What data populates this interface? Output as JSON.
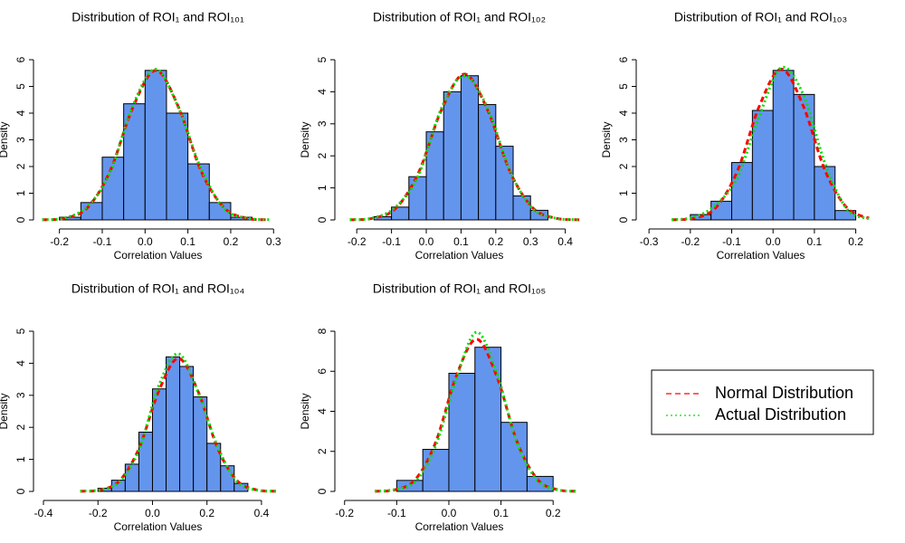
{
  "chart_data": [
    {
      "type": "histogram",
      "title": "Distribution of ROI₁ and ROI₁₀₁",
      "x_label": "Correlation Values",
      "y_label": "Density",
      "color": "#6495ed",
      "bins": [
        -0.2,
        -0.15,
        -0.1,
        -0.05,
        0,
        0.05,
        0.1,
        0.15,
        0.2,
        0.25
      ],
      "values": [
        0.1,
        0.65,
        2.35,
        4.35,
        5.6,
        4.0,
        2.1,
        0.65,
        0.1
      ],
      "xlim": [
        -0.25,
        0.31
      ],
      "xticks": [
        -0.2,
        -0.1,
        {
          "value": 0,
          "label": "0.0"
        },
        0.1,
        0.2,
        0.3
      ],
      "ylim": [
        0,
        6
      ],
      "yticks": [
        0,
        1,
        2,
        3,
        4,
        5,
        6
      ],
      "series": [
        {
          "color": "#ff0000",
          "x": [
            -0.24,
            -0.188,
            -0.135,
            -0.082,
            -0.028,
            0.025,
            0.078,
            0.131,
            0.185,
            0.238,
            0.29
          ],
          "values": [
            0.005,
            0.06,
            0.45,
            1.82,
            4.23,
            5.6,
            4.23,
            1.82,
            0.45,
            0.06,
            0.005
          ]
        },
        {
          "color": "#00e000",
          "x": [
            -0.24,
            -0.188,
            -0.135,
            -0.082,
            -0.028,
            0.025,
            0.078,
            0.131,
            0.185,
            0.238,
            0.29
          ],
          "values": [
            0.01,
            0.07,
            0.5,
            1.75,
            4.3,
            5.65,
            4.2,
            1.9,
            0.42,
            0.07,
            0.01
          ]
        }
      ]
    },
    {
      "type": "histogram",
      "title": "Distribution of ROI₁ and ROI₁₀₂",
      "x_label": "Correlation Values",
      "y_label": "Density",
      "color": "#6495ed",
      "bins": [
        -0.15,
        -0.1,
        -0.05,
        0,
        0.05,
        0.1,
        0.15,
        0.2,
        0.25,
        0.3,
        0.35
      ],
      "values": [
        0.1,
        0.4,
        1.35,
        2.75,
        4.0,
        4.5,
        3.6,
        2.3,
        0.75,
        0.3
      ],
      "xlim": [
        -0.25,
        0.44
      ],
      "xticks": [
        -0.2,
        -0.1,
        {
          "value": 0,
          "label": "0.0"
        },
        0.1,
        0.2,
        0.3,
        0.4
      ],
      "ylim": [
        0,
        5
      ],
      "yticks": [
        0,
        1,
        2,
        3,
        4,
        5
      ],
      "series": [
        {
          "color": "#ff0000",
          "x": [
            -0.22,
            -0.154,
            -0.088,
            -0.022,
            0.044,
            0.11,
            0.176,
            0.242,
            0.308,
            0.374,
            0.44
          ],
          "values": [
            0.004,
            0.05,
            0.36,
            1.48,
            3.44,
            4.55,
            3.44,
            1.48,
            0.36,
            0.05,
            0.004
          ]
        },
        {
          "color": "#00e000",
          "x": [
            -0.22,
            -0.154,
            -0.088,
            -0.022,
            0.044,
            0.11,
            0.176,
            0.242,
            0.308,
            0.374,
            0.44
          ],
          "values": [
            0.01,
            0.06,
            0.4,
            1.4,
            3.5,
            4.5,
            3.5,
            1.5,
            0.33,
            0.05,
            0.01
          ]
        }
      ]
    },
    {
      "type": "histogram",
      "title": "Distribution of ROI₁ and ROI₁₀₃",
      "x_label": "Correlation Values",
      "y_label": "Density",
      "color": "#6495ed",
      "bins": [
        -0.2,
        -0.15,
        -0.1,
        -0.05,
        0,
        0.05,
        0.1,
        0.15,
        0.2
      ],
      "values": [
        0.2,
        0.7,
        2.15,
        4.1,
        5.6,
        4.7,
        2.0,
        0.35
      ],
      "xlim": [
        -0.32,
        0.26
      ],
      "xticks": [
        -0.3,
        -0.2,
        -0.1,
        {
          "value": 0,
          "label": "0.0"
        },
        0.1,
        0.2
      ],
      "ylim": [
        0,
        6
      ],
      "yticks": [
        0,
        1,
        2,
        3,
        4,
        5,
        6
      ],
      "series": [
        {
          "color": "#ff0000",
          "x": [
            -0.245,
            -0.192,
            -0.139,
            -0.086,
            -0.033,
            0.02,
            0.073,
            0.126,
            0.179,
            0.232
          ],
          "values": [
            0.005,
            0.063,
            0.45,
            1.84,
            4.27,
            5.65,
            4.27,
            1.84,
            0.45,
            0.063
          ]
        },
        {
          "color": "#00e000",
          "x": [
            -0.245,
            -0.192,
            -0.139,
            -0.086,
            -0.033,
            0.02,
            0.073,
            0.126,
            0.179,
            0.232
          ],
          "values": [
            0.01,
            0.1,
            0.55,
            1.6,
            3.9,
            5.7,
            4.7,
            2.1,
            0.4,
            0.04
          ]
        }
      ]
    },
    {
      "type": "histogram",
      "title": "Distribution of ROI₁ and ROI₁₀₄",
      "x_label": "Correlation Values",
      "y_label": "Density",
      "color": "#6495ed",
      "bins": [
        -0.2,
        -0.15,
        -0.1,
        -0.05,
        0,
        0.05,
        0.1,
        0.15,
        0.2,
        0.25,
        0.3,
        0.35
      ],
      "values": [
        0.1,
        0.35,
        0.85,
        1.85,
        3.2,
        4.2,
        3.9,
        2.95,
        1.5,
        0.8,
        0.25
      ],
      "xlim": [
        -0.42,
        0.46
      ],
      "xticks": [
        -0.4,
        -0.2,
        {
          "value": 0,
          "label": "0.0"
        },
        0.2,
        0.4
      ],
      "ylim": [
        0,
        5
      ],
      "yticks": [
        0,
        1,
        2,
        3,
        4,
        5
      ],
      "series": [
        {
          "color": "#ff0000",
          "x": [
            -0.265,
            -0.193,
            -0.121,
            -0.049,
            0.023,
            0.095,
            0.167,
            0.239,
            0.311,
            0.383,
            0.455
          ],
          "values": [
            0.004,
            0.046,
            0.33,
            1.35,
            3.13,
            4.15,
            3.13,
            1.35,
            0.33,
            0.046,
            0.004
          ]
        },
        {
          "color": "#00e000",
          "x": [
            -0.265,
            -0.193,
            -0.121,
            -0.049,
            0.023,
            0.095,
            0.167,
            0.239,
            0.311,
            0.383,
            0.455
          ],
          "values": [
            0.01,
            0.05,
            0.3,
            1.3,
            3.3,
            4.3,
            3.1,
            1.4,
            0.3,
            0.04,
            0.01
          ]
        }
      ]
    },
    {
      "type": "histogram",
      "title": "Distribution of ROI₁ and ROI₁₀₅",
      "x_label": "Correlation Values",
      "y_label": "Density",
      "color": "#6495ed",
      "bins": [
        -0.1,
        -0.05,
        0,
        0.05,
        0.1,
        0.15,
        0.2
      ],
      "values": [
        0.55,
        2.1,
        5.9,
        7.2,
        3.45,
        0.75
      ],
      "xlim": [
        -0.21,
        0.25
      ],
      "xticks": [
        -0.2,
        -0.1,
        {
          "value": 0,
          "label": "0.0"
        },
        0.1,
        0.2
      ],
      "ylim": [
        0,
        8
      ],
      "yticks": [
        0,
        2,
        4,
        6,
        8
      ],
      "series": [
        {
          "color": "#ff0000",
          "x": [
            -0.142,
            -0.103,
            -0.064,
            -0.025,
            0.014,
            0.053,
            0.092,
            0.131,
            0.17,
            0.209,
            0.248
          ],
          "values": [
            0.007,
            0.084,
            0.6,
            2.47,
            5.74,
            7.6,
            5.74,
            2.47,
            0.6,
            0.084,
            0.007
          ]
        },
        {
          "color": "#00e000",
          "x": [
            -0.142,
            -0.103,
            -0.064,
            -0.025,
            0.014,
            0.053,
            0.092,
            0.131,
            0.17,
            0.209,
            0.248
          ],
          "values": [
            0.01,
            0.1,
            0.5,
            2.3,
            5.6,
            7.95,
            5.9,
            2.4,
            0.55,
            0.08,
            0.01
          ]
        }
      ]
    }
  ],
  "legend": {
    "labels": [
      "Normal Distribution",
      "Actual Distribution"
    ],
    "colors": [
      "#ff0000",
      "#00e000"
    ],
    "dashes": [
      "6 4",
      "2 3"
    ]
  }
}
